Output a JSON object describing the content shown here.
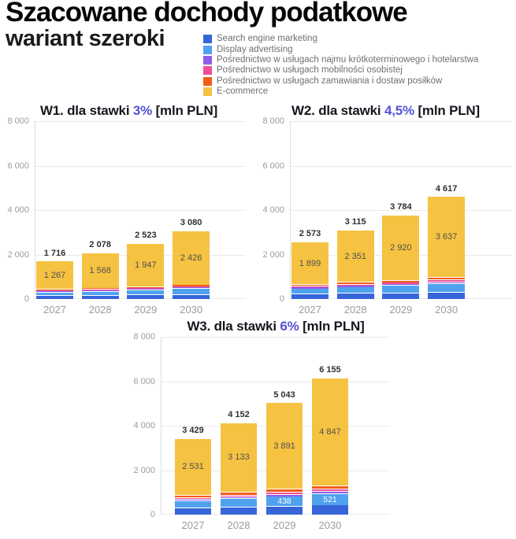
{
  "header": {
    "title": "Szacowane dochody podatkowe",
    "subtitle": "wariant szeroki"
  },
  "legend": {
    "items": [
      {
        "key": "sem",
        "label": "Search engine marketing",
        "color": "#3765d9"
      },
      {
        "key": "display",
        "label": "Display advertising",
        "color": "#4fa3ee"
      },
      {
        "key": "najem",
        "label": "Pośrednictwo w usługach najmu krótkoterminowego i hotelarstwa",
        "color": "#8e5ce8"
      },
      {
        "key": "mobilnosc",
        "label": "Pośrednictwo w usługach mobilności osobistej",
        "color": "#ee4f94"
      },
      {
        "key": "posilki",
        "label": "Pośrednictwo w usługach zamawiania i dostaw posiłków",
        "color": "#f25c19"
      },
      {
        "key": "ecommerce",
        "label": "E-commerce",
        "color": "#f5c242"
      }
    ]
  },
  "colors": {
    "accent": "#5453d6",
    "title_text": "#16161f",
    "axis_text": "#9c9c9c",
    "grid": "#eaeaea",
    "total_label": "#2f2f2f",
    "inner_label_dark": "#4f4f4f",
    "inner_label_light": "#ffffff"
  },
  "chart_data": [
    {
      "type": "bar",
      "stacked": true,
      "title_prefix": "W1. dla stawki ",
      "rate": "3%",
      "title_suffix": " [mln PLN]",
      "units": "mln PLN",
      "categories": [
        "2027",
        "2028",
        "2029",
        "2030"
      ],
      "ylim": [
        0,
        8000
      ],
      "yticks": {
        "values": [
          8000,
          6000,
          4000,
          2000,
          0
        ],
        "labels": [
          "8 000",
          "6 000",
          "4 000",
          "2 000",
          "0"
        ]
      },
      "grid": true,
      "legend_position": "top-of-page",
      "series": [
        {
          "name": "Search engine marketing",
          "values": [
            163,
            180,
            196,
            220
          ],
          "estimated": true
        },
        {
          "name": "Display advertising",
          "values": [
            155,
            184,
            219,
            260
          ],
          "estimated": true
        },
        {
          "name": "Pośrednictwo w usługach najmu krótkoterminowego i hotelarstwa",
          "values": [
            35,
            39,
            43,
            47
          ],
          "estimated": true
        },
        {
          "name": "Pośrednictwo w usługach mobilności osobistej",
          "values": [
            40,
            44,
            48,
            52
          ],
          "estimated": true
        },
        {
          "name": "Pośrednictwo w usługach zamawiania i dostaw posiłków",
          "values": [
            56,
            63,
            70,
            75
          ],
          "estimated": true
        },
        {
          "name": "E-commerce",
          "values": [
            1267,
            1568,
            1947,
            2426
          ],
          "labels": [
            "1 267",
            "1 568",
            "1 947",
            "2 426"
          ],
          "label_style": "dark"
        }
      ],
      "totals": {
        "values": [
          1716,
          2078,
          2523,
          3080
        ],
        "labels": [
          "1 716",
          "2 078",
          "2 523",
          "3 080"
        ]
      }
    },
    {
      "type": "bar",
      "stacked": true,
      "title_prefix": "W2. dla stawki ",
      "rate": "4,5%",
      "title_suffix": " [mln PLN]",
      "units": "mln PLN",
      "categories": [
        "2027",
        "2028",
        "2029",
        "2030"
      ],
      "ylim": [
        0,
        8000
      ],
      "yticks": {
        "values": [
          8000,
          6000,
          4000,
          2000,
          0
        ],
        "labels": [
          "8 000",
          "6 000",
          "4 000",
          "2 000",
          "0"
        ]
      },
      "grid": true,
      "series": [
        {
          "name": "Search engine marketing",
          "values": [
            245,
            270,
            294,
            330
          ],
          "estimated": true
        },
        {
          "name": "Display advertising",
          "values": [
            233,
            276,
            329,
            390
          ],
          "estimated": true
        },
        {
          "name": "Pośrednictwo w usługach najmu krótkoterminowego i hotelarstwa",
          "values": [
            53,
            59,
            65,
            71
          ],
          "estimated": true
        },
        {
          "name": "Pośrednictwo w usługach mobilności osobistej",
          "values": [
            60,
            66,
            72,
            78
          ],
          "estimated": true
        },
        {
          "name": "Pośrednictwo w usługach zamawiania i dostaw posiłków",
          "values": [
            83,
            93,
            104,
            111
          ],
          "estimated": true
        },
        {
          "name": "E-commerce",
          "values": [
            1899,
            2351,
            2920,
            3637
          ],
          "labels": [
            "1 899",
            "2 351",
            "2 920",
            "3 637"
          ],
          "label_style": "dark"
        }
      ],
      "totals": {
        "values": [
          2573,
          3115,
          3784,
          4617
        ],
        "labels": [
          "2 573",
          "3 115",
          "3 784",
          "4 617"
        ]
      }
    },
    {
      "type": "bar",
      "stacked": true,
      "title_prefix": "W3. dla stawki ",
      "rate": "6%",
      "title_suffix": " [mln PLN]",
      "units": "mln PLN",
      "categories": [
        "2027",
        "2028",
        "2029",
        "2030"
      ],
      "ylim": [
        0,
        8000
      ],
      "yticks": {
        "values": [
          8000,
          6000,
          4000,
          2000,
          0
        ],
        "labels": [
          "8 000",
          "6 000",
          "4 000",
          "2 000",
          "0"
        ]
      },
      "grid": true,
      "series": [
        {
          "name": "Search engine marketing",
          "values": [
            326,
            360,
            392,
            440
          ],
          "estimated": true
        },
        {
          "name": "Display advertising",
          "values": [
            310,
            368,
            438,
            521
          ],
          "labels": [
            "",
            "",
            "438",
            "521"
          ],
          "label_style": "light",
          "estimated_first_two": true
        },
        {
          "name": "Pośrednictwo w usługach najmu krótkoterminowego i hotelarstwa",
          "values": [
            70,
            78,
            86,
            94
          ],
          "estimated": true
        },
        {
          "name": "Pośrednictwo w usługach mobilności osobistej",
          "values": [
            80,
            88,
            96,
            104
          ],
          "estimated": true
        },
        {
          "name": "Pośrednictwo w usługach zamawiania i dostaw posiłków",
          "values": [
            112,
            125,
            140,
            149
          ],
          "estimated": true
        },
        {
          "name": "E-commerce",
          "values": [
            2531,
            3133,
            3891,
            4847
          ],
          "labels": [
            "2 531",
            "3 133",
            "3 891",
            "4 847"
          ],
          "label_style": "dark"
        }
      ],
      "totals": {
        "values": [
          3429,
          4152,
          5043,
          6155
        ],
        "labels": [
          "3 429",
          "4 152",
          "5 043",
          "6 155"
        ]
      }
    }
  ]
}
